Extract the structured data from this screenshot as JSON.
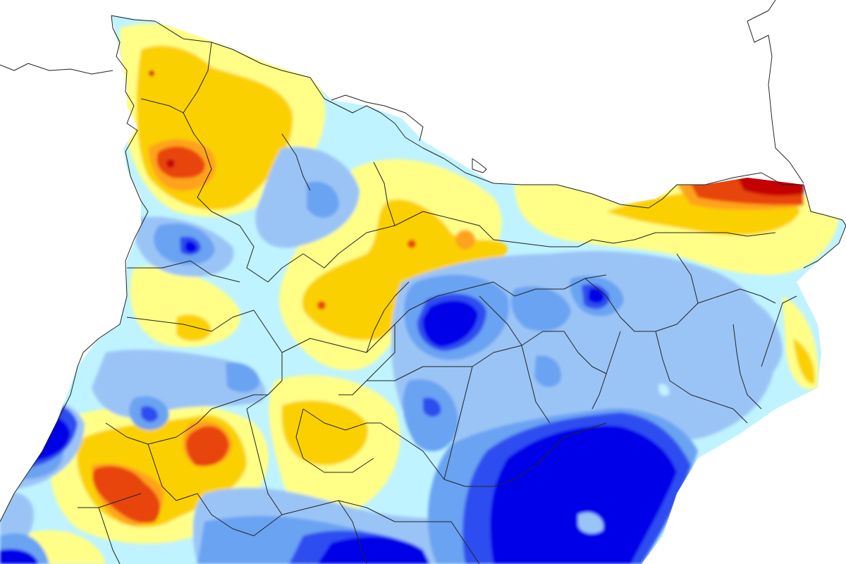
{
  "map": {
    "kind": "precipitation anomaly raster (Catalonia)",
    "background_color": "#ffffff",
    "border_color": "#222222",
    "palette": {
      "very_dry": "#c40000",
      "dry_strong": "#e8450e",
      "dry": "#ffa31a",
      "dry_mild": "#fbd000",
      "near_normal_dry": "#ffff88",
      "near_normal_wet": "#bff3ff",
      "wet_mild": "#9bc4f6",
      "wet": "#6aa3f2",
      "wet_strong": "#2d4df0",
      "very_wet": "#0000e8"
    }
  }
}
